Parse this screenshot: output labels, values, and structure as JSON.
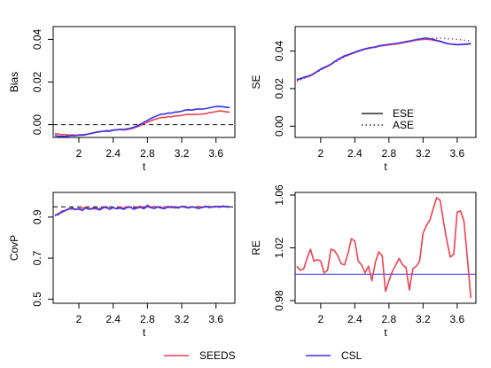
{
  "colors": {
    "seeds": "#f04050",
    "csl": "#3333ee",
    "axis": "#000000",
    "ref": "#000000",
    "se_ase": "#9944aa"
  },
  "legend": [
    {
      "name": "SEEDS",
      "color": "#f04050"
    },
    {
      "name": "CSL",
      "color": "#3333ee"
    }
  ],
  "chart_data": [
    {
      "type": "line",
      "xlabel": "t",
      "ylabel": "Bias",
      "xlim": [
        1.7,
        3.82
      ],
      "ylim": [
        -0.006,
        0.046
      ],
      "xticks": [
        "2",
        "2.4",
        "2.8",
        "3.2",
        "3.6"
      ],
      "yticks": [
        "0.00",
        "0.02",
        "0.04"
      ],
      "refline": {
        "y": 0,
        "style": "dashed"
      },
      "x": [
        1.72,
        1.76,
        1.8,
        1.84,
        1.88,
        1.92,
        1.96,
        2.0,
        2.04,
        2.08,
        2.12,
        2.16,
        2.2,
        2.24,
        2.28,
        2.32,
        2.36,
        2.4,
        2.44,
        2.48,
        2.52,
        2.56,
        2.6,
        2.64,
        2.68,
        2.72,
        2.76,
        2.8,
        2.84,
        2.88,
        2.92,
        2.96,
        3.0,
        3.04,
        3.08,
        3.12,
        3.16,
        3.2,
        3.24,
        3.28,
        3.32,
        3.36,
        3.4,
        3.44,
        3.48,
        3.52,
        3.56,
        3.6,
        3.64,
        3.68,
        3.72,
        3.76
      ],
      "series": [
        {
          "name": "SEEDS",
          "values": [
            -0.0042,
            -0.0044,
            -0.0047,
            -0.0046,
            -0.0049,
            -0.0048,
            -0.005,
            -0.0047,
            -0.0047,
            -0.0046,
            -0.0043,
            -0.004,
            -0.0036,
            -0.0034,
            -0.0031,
            -0.0028,
            -0.0028,
            -0.0025,
            -0.0024,
            -0.0023,
            -0.0025,
            -0.0023,
            -0.002,
            -0.0016,
            -0.001,
            -0.0004,
            0.0006,
            0.0012,
            0.0018,
            0.0024,
            0.0029,
            0.0033,
            0.0033,
            0.0038,
            0.0036,
            0.0041,
            0.0041,
            0.0044,
            0.0047,
            0.0049,
            0.0047,
            0.0049,
            0.0048,
            0.005,
            0.0052,
            0.0056,
            0.0058,
            0.0061,
            0.0065,
            0.0063,
            0.006,
            0.0059
          ]
        },
        {
          "name": "CSL",
          "values": [
            -0.0052,
            -0.0054,
            -0.0055,
            -0.0055,
            -0.0053,
            -0.0051,
            -0.0052,
            -0.0049,
            -0.0049,
            -0.0047,
            -0.0043,
            -0.0039,
            -0.0036,
            -0.0033,
            -0.0031,
            -0.003,
            -0.0031,
            -0.0026,
            -0.0025,
            -0.0022,
            -0.0023,
            -0.002,
            -0.0017,
            -0.0012,
            -0.0006,
            0.0002,
            0.0011,
            0.002,
            0.0029,
            0.0036,
            0.0043,
            0.0049,
            0.005,
            0.0055,
            0.0054,
            0.0059,
            0.006,
            0.0063,
            0.0068,
            0.007,
            0.0068,
            0.0072,
            0.0074,
            0.0073,
            0.0075,
            0.0079,
            0.0082,
            0.0085,
            0.0086,
            0.0084,
            0.0082,
            0.008
          ]
        }
      ]
    },
    {
      "type": "line",
      "xlabel": "t",
      "ylabel": "SE",
      "xlim": [
        1.7,
        3.82
      ],
      "ylim": [
        -0.006,
        0.053
      ],
      "xticks": [
        "2",
        "2.4",
        "2.8",
        "3.2",
        "3.6"
      ],
      "yticks": [
        "0.00",
        "0.02",
        "0.04"
      ],
      "legend_inset": [
        {
          "name": "ESE",
          "style": "solid"
        },
        {
          "name": "ASE",
          "style": "dotted"
        }
      ],
      "x": [
        1.72,
        1.76,
        1.8,
        1.84,
        1.88,
        1.92,
        1.96,
        2.0,
        2.04,
        2.08,
        2.12,
        2.16,
        2.2,
        2.24,
        2.28,
        2.32,
        2.36,
        2.4,
        2.44,
        2.48,
        2.52,
        2.56,
        2.6,
        2.64,
        2.68,
        2.72,
        2.76,
        2.8,
        2.84,
        2.88,
        2.92,
        2.96,
        3.0,
        3.04,
        3.08,
        3.12,
        3.16,
        3.2,
        3.24,
        3.28,
        3.32,
        3.36,
        3.4,
        3.44,
        3.48,
        3.52,
        3.56,
        3.6,
        3.64,
        3.68,
        3.72,
        3.76
      ],
      "series": [
        {
          "style": "solid",
          "color": "#f04050",
          "values": [
            0.0245,
            0.025,
            0.0258,
            0.0262,
            0.0268,
            0.0278,
            0.029,
            0.0302,
            0.031,
            0.0318,
            0.0328,
            0.0342,
            0.0352,
            0.0362,
            0.0372,
            0.0378,
            0.0385,
            0.0392,
            0.0398,
            0.0405,
            0.041,
            0.0414,
            0.0418,
            0.042,
            0.0425,
            0.0428,
            0.043,
            0.0433,
            0.0435,
            0.0437,
            0.044,
            0.0443,
            0.0447,
            0.045,
            0.0454,
            0.0458,
            0.046,
            0.0462,
            0.0463,
            0.0461,
            0.0458,
            0.0454,
            0.045,
            0.0445,
            0.044,
            0.0437,
            0.0435,
            0.0433,
            0.0434,
            0.0435,
            0.0436,
            0.0437
          ]
        },
        {
          "style": "solid",
          "color": "#3333ee",
          "values": [
            0.0248,
            0.0253,
            0.026,
            0.0265,
            0.0271,
            0.0281,
            0.0292,
            0.0304,
            0.0313,
            0.0321,
            0.033,
            0.0344,
            0.0355,
            0.0365,
            0.0375,
            0.038,
            0.0387,
            0.0394,
            0.04,
            0.0407,
            0.0412,
            0.0416,
            0.0419,
            0.0422,
            0.0427,
            0.0431,
            0.0433,
            0.0436,
            0.0438,
            0.044,
            0.0443,
            0.0446,
            0.045,
            0.0453,
            0.0457,
            0.0461,
            0.0464,
            0.0467,
            0.0468,
            0.0466,
            0.0462,
            0.0457,
            0.0452,
            0.0446,
            0.0441,
            0.0438,
            0.0436,
            0.0434,
            0.0435,
            0.0436,
            0.0438,
            0.044
          ]
        },
        {
          "style": "dotted",
          "color": "#9944aa",
          "values": [
            0.0238,
            0.0246,
            0.0254,
            0.026,
            0.0268,
            0.0278,
            0.0288,
            0.0298,
            0.0308,
            0.0318,
            0.0328,
            0.0338,
            0.0348,
            0.0358,
            0.0368,
            0.0376,
            0.0384,
            0.039,
            0.0396,
            0.0402,
            0.0408,
            0.0412,
            0.0416,
            0.042,
            0.0424,
            0.0428,
            0.0432,
            0.0435,
            0.0438,
            0.0441,
            0.0444,
            0.0447,
            0.045,
            0.0454,
            0.0458,
            0.046,
            0.0462,
            0.0464,
            0.0466,
            0.0467,
            0.0468,
            0.0468,
            0.0468,
            0.0467,
            0.0466,
            0.0465,
            0.0464,
            0.0462,
            0.046,
            0.0458,
            0.0456,
            0.0454
          ]
        }
      ]
    },
    {
      "type": "line",
      "xlabel": "t",
      "ylabel": "CovP",
      "xlim": [
        1.7,
        3.82
      ],
      "ylim": [
        0.48,
        1.02
      ],
      "xticks": [
        "2",
        "2.4",
        "2.8",
        "3.2",
        "3.6"
      ],
      "yticks": [
        "0.5",
        "0.7",
        "0.9"
      ],
      "refline": {
        "y": 0.95,
        "style": "dashed"
      },
      "x": [
        1.72,
        1.76,
        1.8,
        1.84,
        1.88,
        1.92,
        1.96,
        2.0,
        2.04,
        2.08,
        2.12,
        2.16,
        2.2,
        2.24,
        2.28,
        2.32,
        2.36,
        2.4,
        2.44,
        2.48,
        2.52,
        2.56,
        2.6,
        2.64,
        2.68,
        2.72,
        2.76,
        2.8,
        2.84,
        2.88,
        2.92,
        2.96,
        3.0,
        3.04,
        3.08,
        3.12,
        3.16,
        3.2,
        3.24,
        3.28,
        3.32,
        3.36,
        3.4,
        3.44,
        3.48,
        3.52,
        3.56,
        3.6,
        3.64,
        3.68,
        3.72,
        3.76
      ],
      "series": [
        {
          "name": "SEEDS",
          "values": [
            0.905,
            0.918,
            0.922,
            0.93,
            0.942,
            0.938,
            0.94,
            0.936,
            0.944,
            0.948,
            0.94,
            0.944,
            0.938,
            0.942,
            0.948,
            0.944,
            0.94,
            0.946,
            0.942,
            0.948,
            0.944,
            0.95,
            0.946,
            0.942,
            0.948,
            0.952,
            0.944,
            0.95,
            0.946,
            0.952,
            0.948,
            0.944,
            0.95,
            0.946,
            0.952,
            0.944,
            0.948,
            0.95,
            0.952,
            0.946,
            0.95,
            0.948,
            0.952,
            0.946,
            0.95,
            0.952,
            0.948,
            0.95,
            0.952,
            0.95,
            0.952,
            0.95
          ]
        },
        {
          "name": "CSL",
          "values": [
            0.91,
            0.912,
            0.928,
            0.932,
            0.938,
            0.944,
            0.936,
            0.942,
            0.932,
            0.944,
            0.938,
            0.94,
            0.946,
            0.934,
            0.944,
            0.95,
            0.938,
            0.946,
            0.94,
            0.944,
            0.938,
            0.946,
            0.95,
            0.938,
            0.944,
            0.948,
            0.94,
            0.958,
            0.946,
            0.942,
            0.95,
            0.944,
            0.94,
            0.952,
            0.946,
            0.95,
            0.944,
            0.952,
            0.948,
            0.944,
            0.95,
            0.946,
            0.942,
            0.948,
            0.952,
            0.946,
            0.95,
            0.952,
            0.948,
            0.954,
            0.95,
            0.948
          ]
        }
      ]
    },
    {
      "type": "line",
      "xlabel": "t",
      "ylabel": "RE",
      "xlim": [
        1.7,
        3.82
      ],
      "ylim": [
        0.978,
        1.062
      ],
      "xticks": [
        "2",
        "2.4",
        "2.8",
        "3.2",
        "3.6"
      ],
      "yticks": [
        "0.98",
        "1.02",
        "1.06"
      ],
      "refline": {
        "y": 1.0,
        "style": "solid",
        "color": "#3333ee"
      },
      "x": [
        1.72,
        1.76,
        1.8,
        1.84,
        1.88,
        1.92,
        1.96,
        2.0,
        2.04,
        2.08,
        2.12,
        2.16,
        2.2,
        2.24,
        2.28,
        2.32,
        2.36,
        2.4,
        2.44,
        2.48,
        2.52,
        2.56,
        2.6,
        2.64,
        2.68,
        2.72,
        2.76,
        2.8,
        2.84,
        2.88,
        2.92,
        2.96,
        3.0,
        3.04,
        3.08,
        3.12,
        3.16,
        3.2,
        3.24,
        3.28,
        3.32,
        3.36,
        3.4,
        3.44,
        3.48,
        3.52,
        3.56,
        3.6,
        3.64,
        3.68,
        3.72,
        3.76
      ],
      "series": [
        {
          "name": "SEEDS",
          "values": [
            1.006,
            1.003,
            1.004,
            1.012,
            1.019,
            1.01,
            1.011,
            1.01,
            1.001,
            1.003,
            1.019,
            1.018,
            1.014,
            1.008,
            1.007,
            1.016,
            1.027,
            1.025,
            1.01,
            1.007,
            1.001,
            1.006,
            0.995,
            1.009,
            1.017,
            1.014,
            0.987,
            0.995,
            1.002,
            1.007,
            1.012,
            1.007,
            1.005,
            0.988,
            1.004,
            1.006,
            1.01,
            1.031,
            1.037,
            1.041,
            1.05,
            1.058,
            1.056,
            1.04,
            1.025,
            1.013,
            1.015,
            1.047,
            1.048,
            1.04,
            1.012,
            0.982
          ]
        }
      ]
    }
  ]
}
